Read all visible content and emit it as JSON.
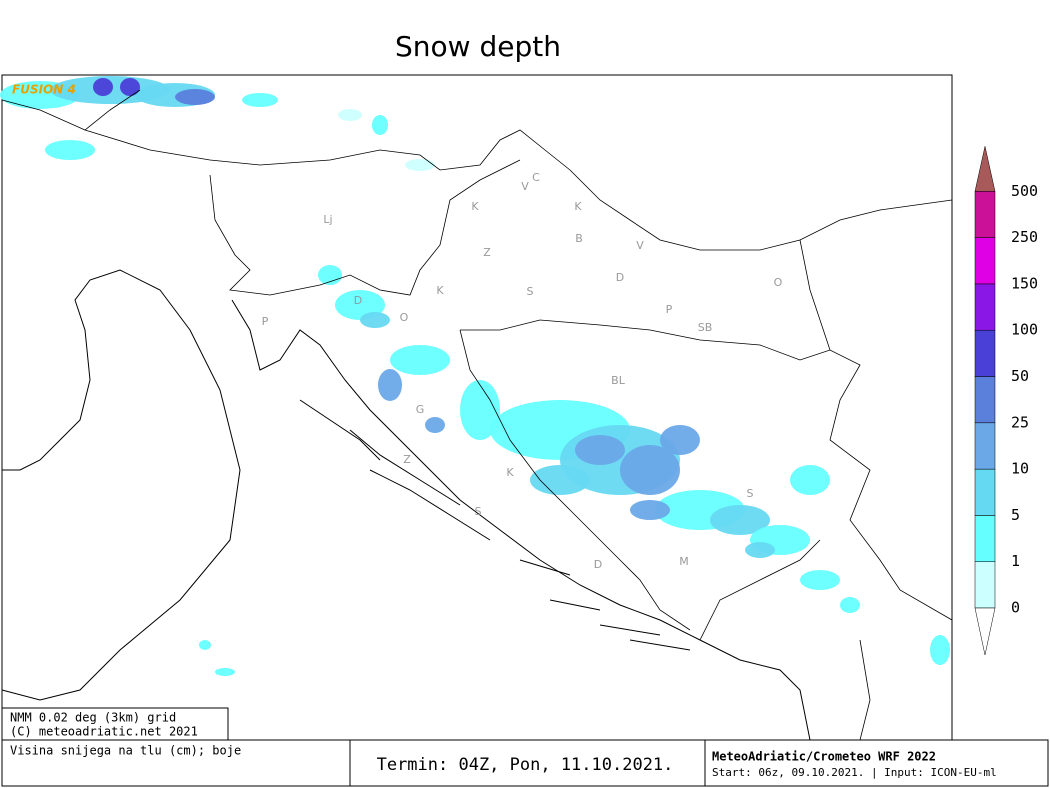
{
  "title": "Snow depth",
  "model_tag": "FUSION 4",
  "legend": {
    "labels": [
      "0",
      "1",
      "5",
      "10",
      "25",
      "50",
      "100",
      "150",
      "250",
      "500"
    ],
    "colors": [
      "#ccffff",
      "#66ffff",
      "#66d9f2",
      "#6aa8e8",
      "#5a80dc",
      "#4a3fd6",
      "#8b17e6",
      "#e000e6",
      "#cc1199"
    ],
    "above_color": "#a85a5a",
    "below_color": "#ffffff"
  },
  "places": [
    "Lj",
    "K",
    "V",
    "C",
    "K",
    "B",
    "Z",
    "V",
    "D",
    "K",
    "S",
    "O",
    "D",
    "O",
    "P",
    "P",
    "SB",
    "BL",
    "G",
    "Z",
    "K",
    "S",
    "S",
    "M",
    "D"
  ],
  "info": {
    "grid": "NMM 0.02 deg (3km) grid",
    "copyright": "(C) meteoadriatic.net 2021",
    "description": "Visina snijega na tlu (cm); boje",
    "termin": "Termin: 04Z, Pon, 11.10.2021.",
    "model": "MeteoAdriatic/Crometeo WRF 2022",
    "start": "Start: 06z, 09.10.2021. | Input: ICON-EU-ml"
  }
}
